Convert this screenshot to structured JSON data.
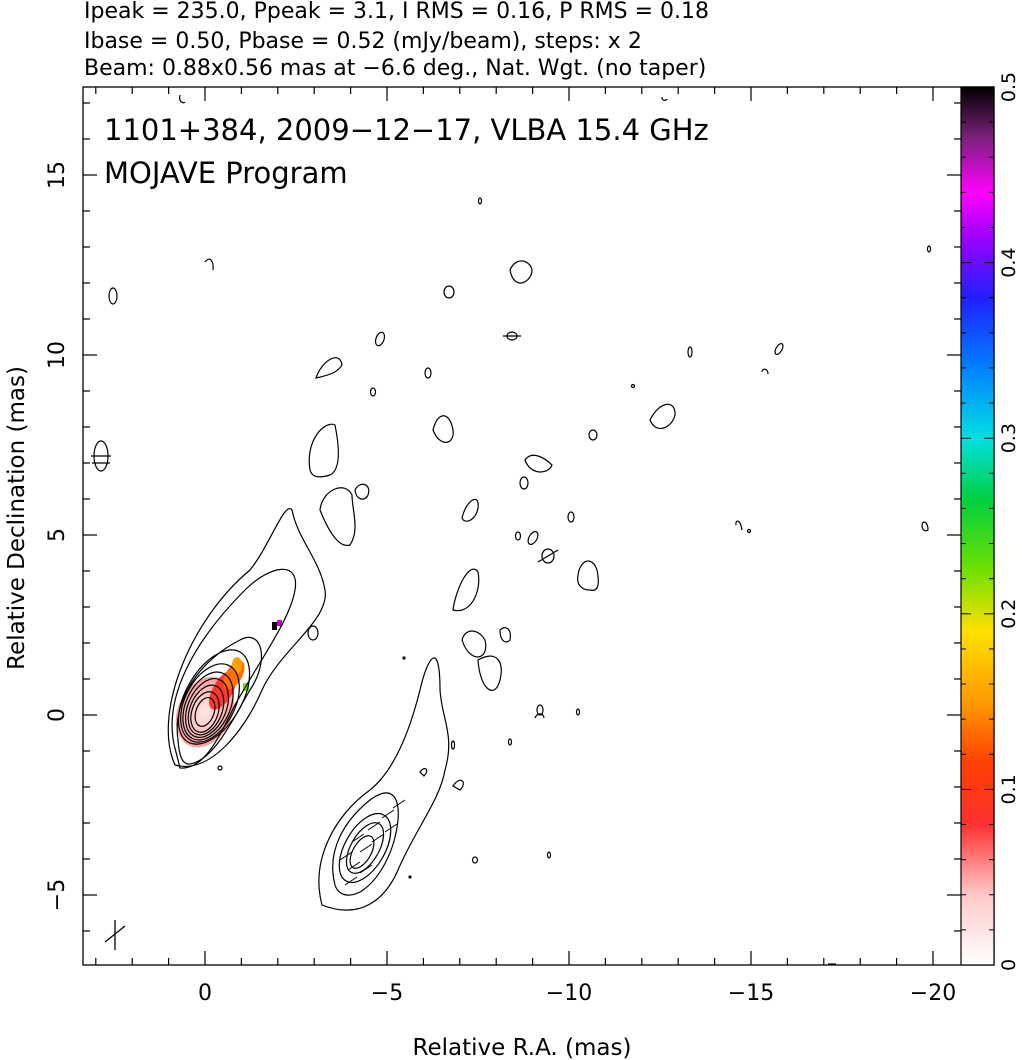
{
  "header": {
    "line1": "Ipeak = 235.0, Ppeak = 3.1, I RMS = 0.16, P RMS = 0.18",
    "line2": "Ibase = 0.50, Pbase = 0.52 (mJy/beam), steps: x 2",
    "line3": "Beam: 0.88x0.56 mas at −6.6 deg., Nat. Wgt. (no taper)"
  },
  "plot_text": {
    "title": "1101+384, 2009−12−17, VLBA 15.4 GHz",
    "subtitle": "MOJAVE Program"
  },
  "chart_data": {
    "type": "heatmap",
    "title": "1101+384, 2009−12−17, VLBA 15.4 GHz",
    "subtitle": "MOJAVE Program",
    "xlabel": "Relative R.A. (mas)",
    "ylabel": "Relative Declination (mas)",
    "xlim": [
      3.4,
      -21.3
    ],
    "ylim": [
      -6.9,
      17.5
    ],
    "x_ticks": [
      0,
      -5,
      -10,
      -15,
      -20
    ],
    "x_tick_labels": [
      "0",
      "−5",
      "−10",
      "−15",
      "−20"
    ],
    "y_ticks": [
      -5,
      0,
      5,
      10,
      15
    ],
    "y_tick_labels": [
      "−5",
      "0",
      "5",
      "10",
      "15"
    ],
    "colorbar": {
      "ticks": [
        0,
        0.1,
        0.2,
        0.3,
        0.4,
        0.5
      ],
      "tick_labels": [
        "0",
        "0.1",
        "0.2",
        "0.3",
        "0.4",
        "0.5"
      ],
      "range": [
        0,
        0.5
      ]
    },
    "core": {
      "x": 0.0,
      "y": 0.0
    },
    "contour_levels_mJy": [
      0.5,
      1,
      2,
      4,
      8,
      16,
      32,
      64,
      128
    ],
    "beam": {
      "major_mas": 0.88,
      "minor_mas": 0.56,
      "pa_deg": -6.6
    },
    "colors": {
      "contour": "#000000",
      "pol_low": "#ffb8b8",
      "pol_mid": "#ff3a00",
      "pol_high": "#ff9a00"
    }
  }
}
